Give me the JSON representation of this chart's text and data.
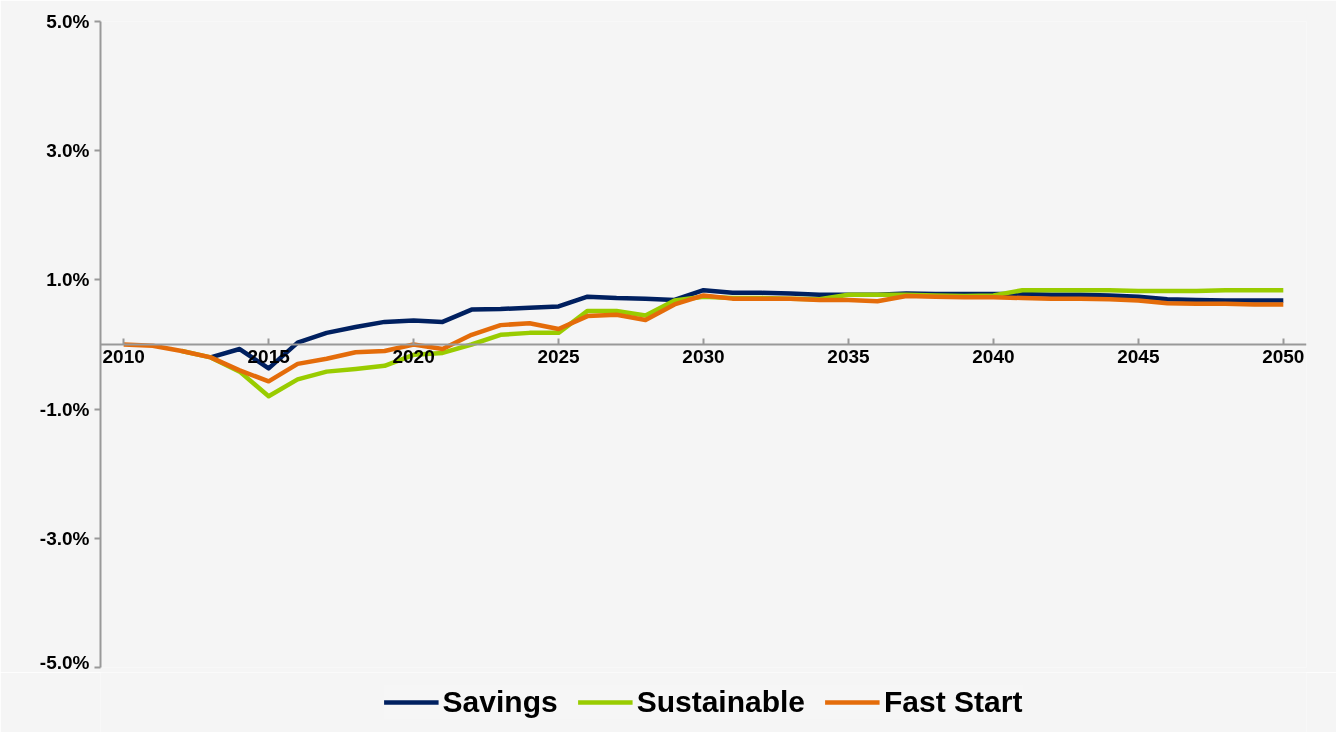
{
  "chart_data": {
    "type": "line",
    "x": [
      2010,
      2011,
      2012,
      2013,
      2014,
      2015,
      2016,
      2017,
      2018,
      2019,
      2020,
      2021,
      2022,
      2023,
      2024,
      2025,
      2026,
      2027,
      2028,
      2029,
      2030,
      2031,
      2032,
      2033,
      2034,
      2035,
      2036,
      2037,
      2038,
      2039,
      2040,
      2041,
      2042,
      2043,
      2044,
      2045,
      2046,
      2047,
      2048,
      2049,
      2050
    ],
    "series": [
      {
        "name": "Savings",
        "color": "#002060",
        "values": [
          null,
          null,
          null,
          -0.2,
          -0.07,
          -0.37,
          0.03,
          0.18,
          0.27,
          0.35,
          0.37,
          0.35,
          0.54,
          0.55,
          0.57,
          0.59,
          0.74,
          0.72,
          0.71,
          0.69,
          0.84,
          0.8,
          0.8,
          0.79,
          0.77,
          0.77,
          0.77,
          0.79,
          0.78,
          0.78,
          0.78,
          0.78,
          0.77,
          0.77,
          0.76,
          0.74,
          0.7,
          0.69,
          0.68,
          0.68,
          0.68
        ]
      },
      {
        "name": "Sustainable",
        "color": "#99cc00",
        "values": [
          null,
          null,
          -0.1,
          -0.2,
          -0.42,
          -0.8,
          -0.54,
          -0.42,
          -0.38,
          -0.33,
          -0.16,
          -0.13,
          0.0,
          0.15,
          0.18,
          0.18,
          0.52,
          0.52,
          0.45,
          0.68,
          0.74,
          0.72,
          0.72,
          0.71,
          0.7,
          0.77,
          0.77,
          0.77,
          0.76,
          0.75,
          0.76,
          0.84,
          0.84,
          0.84,
          0.84,
          0.83,
          0.83,
          0.83,
          0.84,
          0.84,
          0.84
        ]
      },
      {
        "name": "Fast Start",
        "color": "#e46c0a",
        "values": [
          0,
          -0.02,
          -0.1,
          -0.2,
          -0.4,
          -0.57,
          -0.3,
          -0.22,
          -0.12,
          -0.1,
          0.0,
          -0.07,
          0.15,
          0.3,
          0.33,
          0.24,
          0.44,
          0.46,
          0.38,
          0.62,
          0.76,
          0.71,
          0.71,
          0.71,
          0.69,
          0.69,
          0.67,
          0.75,
          0.74,
          0.73,
          0.73,
          0.72,
          0.71,
          0.71,
          0.7,
          0.68,
          0.64,
          0.63,
          0.63,
          0.62,
          0.62
        ]
      }
    ],
    "xlim": [
      2009.2,
      2050.8
    ],
    "xticks": [
      2010,
      2015,
      2020,
      2025,
      2030,
      2035,
      2040,
      2045,
      2050
    ],
    "ylim": [
      -5,
      5
    ],
    "yticks": [
      {
        "value": -5,
        "label": "-5.0%"
      },
      {
        "value": -3,
        "label": "-3.0%"
      },
      {
        "value": -1,
        "label": "-1.0%"
      },
      {
        "value": 1,
        "label": "1.0%"
      },
      {
        "value": 3,
        "label": "3.0%"
      },
      {
        "value": 5,
        "label": "5.0%"
      }
    ],
    "grid": false,
    "legend": "bottom",
    "marker": "none",
    "line_style": "solid"
  }
}
